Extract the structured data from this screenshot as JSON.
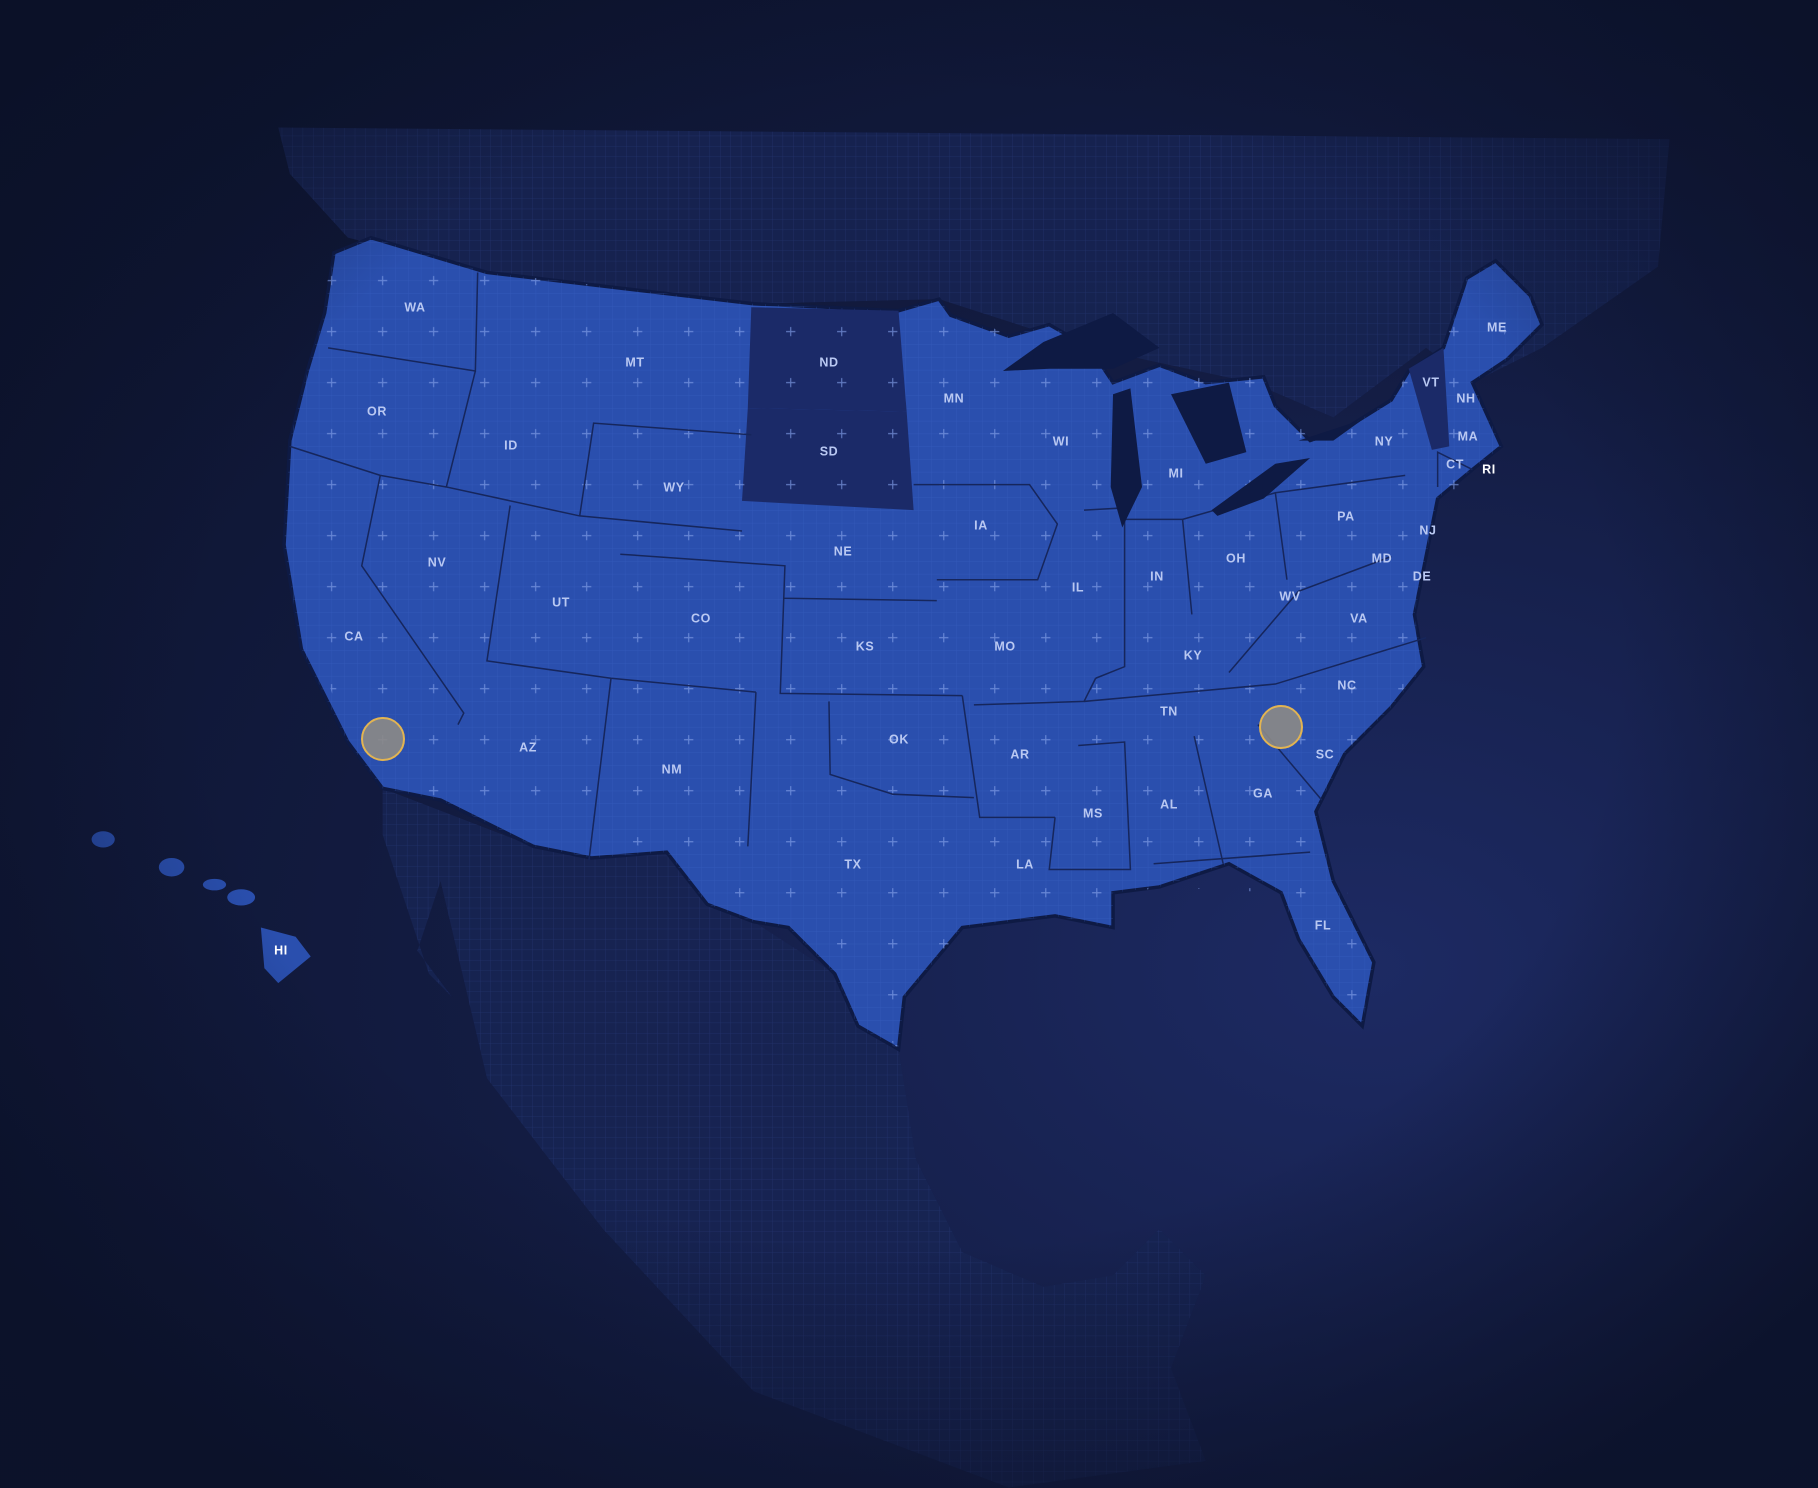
{
  "map": {
    "colors": {
      "background": "#0f1734",
      "state_fill": "#2a4fae",
      "state_dim_fill": "#1b2a68",
      "state_border": "#16265c",
      "label": "#b9c8f2",
      "marker_fill": "#8c8a86",
      "marker_border": "#e2b452"
    },
    "dimmed_states": [
      "ND",
      "SD",
      "VT"
    ],
    "states": [
      "WA",
      "OR",
      "CA",
      "NV",
      "ID",
      "MT",
      "WY",
      "UT",
      "CO",
      "AZ",
      "NM",
      "ND",
      "SD",
      "NE",
      "KS",
      "OK",
      "TX",
      "MN",
      "IA",
      "MO",
      "AR",
      "LA",
      "WI",
      "IL",
      "MI",
      "IN",
      "OH",
      "KY",
      "TN",
      "MS",
      "AL",
      "GA",
      "FL",
      "SC",
      "NC",
      "VA",
      "WV",
      "PA",
      "NY",
      "VT",
      "NH",
      "ME",
      "MA",
      "CT",
      "RI",
      "NJ",
      "DE",
      "MD",
      "HI"
    ],
    "marker_icons": [
      "location-marker-icon",
      "location-marker-icon"
    ]
  }
}
